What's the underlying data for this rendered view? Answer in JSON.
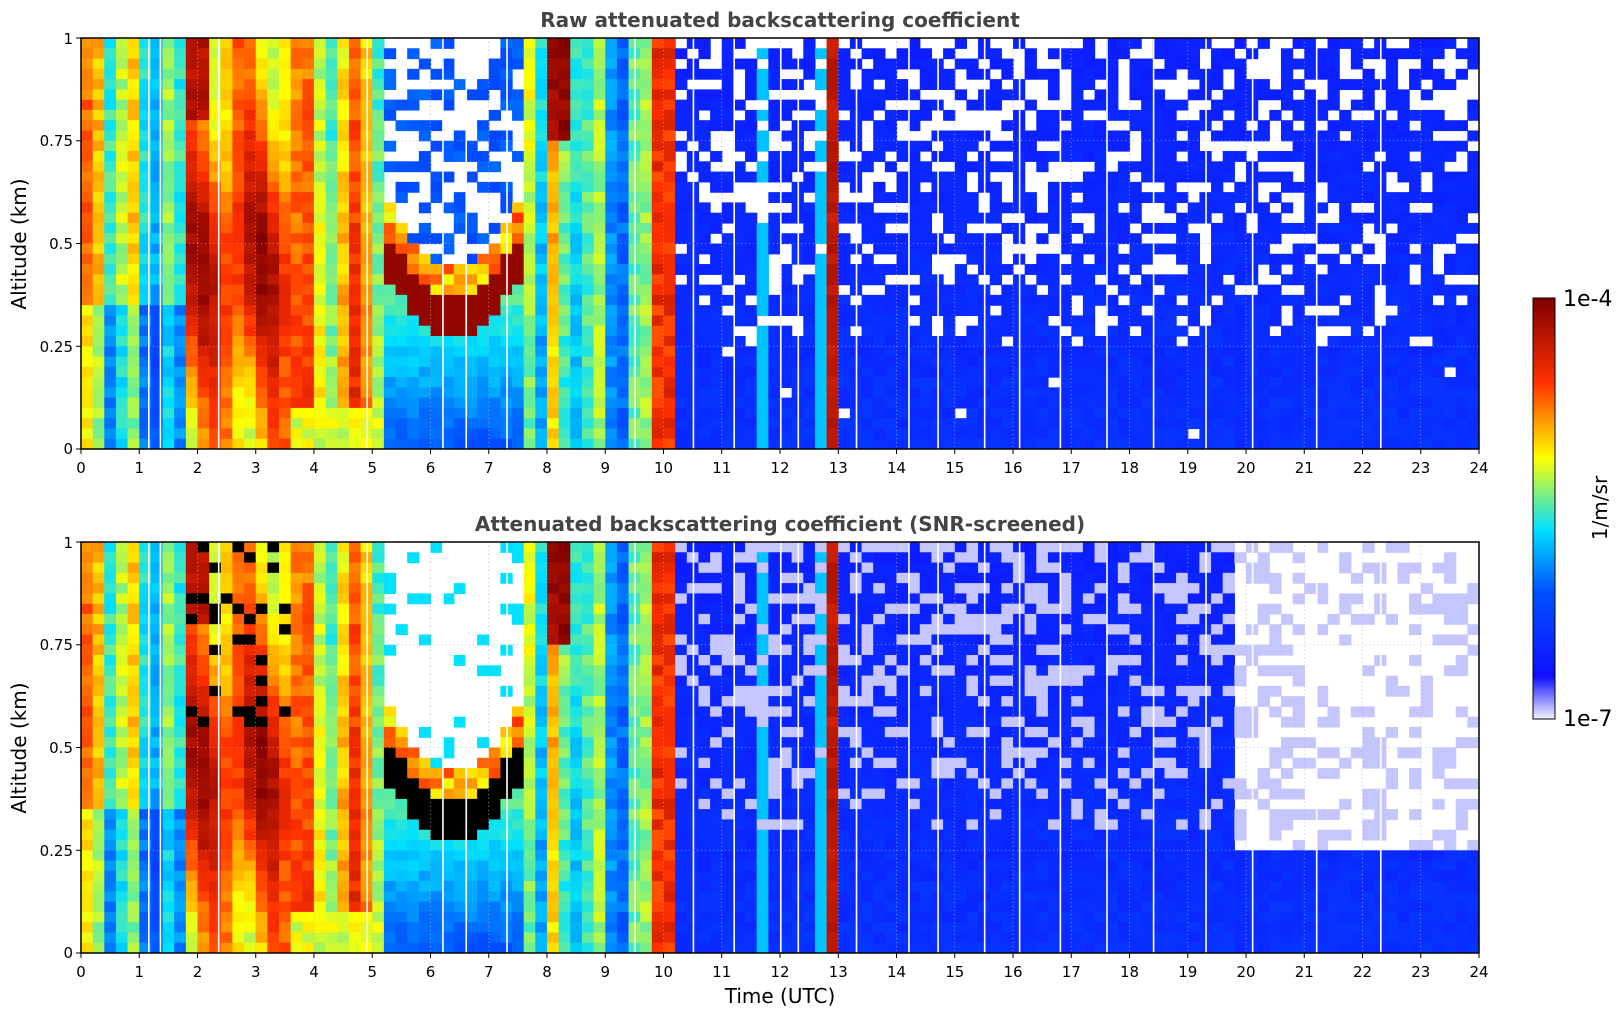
{
  "chart_data": [
    {
      "type": "heatmap",
      "title": "Raw attenuated backscattering coefficient",
      "xlabel": "",
      "ylabel": "Altitude (km)",
      "xlim": [
        0,
        24
      ],
      "ylim": [
        0,
        1
      ],
      "x_ticks": [
        "0",
        "1",
        "2",
        "3",
        "4",
        "5",
        "6",
        "7",
        "8",
        "9",
        "10",
        "11",
        "12",
        "13",
        "14",
        "15",
        "16",
        "17",
        "18",
        "19",
        "20",
        "21",
        "22",
        "23",
        "24"
      ],
      "y_ticks": [
        "0",
        "0.25",
        "0.5",
        "0.75",
        "1"
      ],
      "grid": true,
      "screened": false,
      "features": [
        {
          "x_start": 0.0,
          "x_end": 1.8,
          "y_top": 1.0,
          "level": 0.55
        },
        {
          "x_start": 1.8,
          "x_end": 2.2,
          "y_top": 1.0,
          "level": 0.9
        },
        {
          "x_start": 2.2,
          "x_end": 3.6,
          "y_top": 0.55,
          "level": 0.85
        },
        {
          "x_start": 3.6,
          "x_end": 5.2,
          "y_top": 1.0,
          "level": 0.75
        },
        {
          "x_start": 5.2,
          "x_end": 7.6,
          "y_top": 0.38,
          "level": 0.98
        },
        {
          "x_start": 7.6,
          "x_end": 8.7,
          "y_top": 1.0,
          "level": 0.6
        },
        {
          "x_start": 8.7,
          "x_end": 9.9,
          "y_top": 1.0,
          "level": 0.5
        },
        {
          "x_start": 9.9,
          "x_end": 10.3,
          "y_top": 1.0,
          "level": 0.85
        },
        {
          "x_start": 10.3,
          "x_end": 24.0,
          "y_top": 0.25,
          "level": 0.18
        },
        {
          "x_start": 12.8,
          "x_end": 13.1,
          "y_top": 1.0,
          "level": 0.9
        }
      ]
    },
    {
      "type": "heatmap",
      "title": "Attenuated backscattering coefficient (SNR-screened)",
      "xlabel": "Time (UTC)",
      "ylabel": "Altitude (km)",
      "xlim": [
        0,
        24
      ],
      "ylim": [
        0,
        1
      ],
      "x_ticks": [
        "0",
        "1",
        "2",
        "3",
        "4",
        "5",
        "6",
        "7",
        "8",
        "9",
        "10",
        "11",
        "12",
        "13",
        "14",
        "15",
        "16",
        "17",
        "18",
        "19",
        "20",
        "21",
        "22",
        "23",
        "24"
      ],
      "y_ticks": [
        "0",
        "0.25",
        "0.5",
        "0.75",
        "1"
      ],
      "grid": true,
      "screened": true,
      "features": [
        {
          "x_start": 0.0,
          "x_end": 1.8,
          "y_top": 1.0,
          "level": 0.55
        },
        {
          "x_start": 1.8,
          "x_end": 2.2,
          "y_top": 1.0,
          "level": 0.9
        },
        {
          "x_start": 2.2,
          "x_end": 3.6,
          "y_top": 0.55,
          "level": 0.85
        },
        {
          "x_start": 3.6,
          "x_end": 5.2,
          "y_top": 1.0,
          "level": 0.75
        },
        {
          "x_start": 5.2,
          "x_end": 7.6,
          "y_top": 0.38,
          "level": 0.98
        },
        {
          "x_start": 7.6,
          "x_end": 8.7,
          "y_top": 1.0,
          "level": 0.6
        },
        {
          "x_start": 8.7,
          "x_end": 9.9,
          "y_top": 1.0,
          "level": 0.5
        },
        {
          "x_start": 9.9,
          "x_end": 10.3,
          "y_top": 1.0,
          "level": 0.85
        },
        {
          "x_start": 10.3,
          "x_end": 24.0,
          "y_top": 0.25,
          "level": 0.18
        },
        {
          "x_start": 12.8,
          "x_end": 13.1,
          "y_top": 1.0,
          "level": 0.9
        }
      ]
    }
  ],
  "colorbar": {
    "max_label": "1e-4",
    "min_label": "1e-7",
    "label": "1/m/sr",
    "scale": "log",
    "colormap": [
      "#f4f4ff",
      "#0000ff",
      "#00ffff",
      "#ffff00",
      "#ff0000",
      "#7f0000"
    ]
  }
}
